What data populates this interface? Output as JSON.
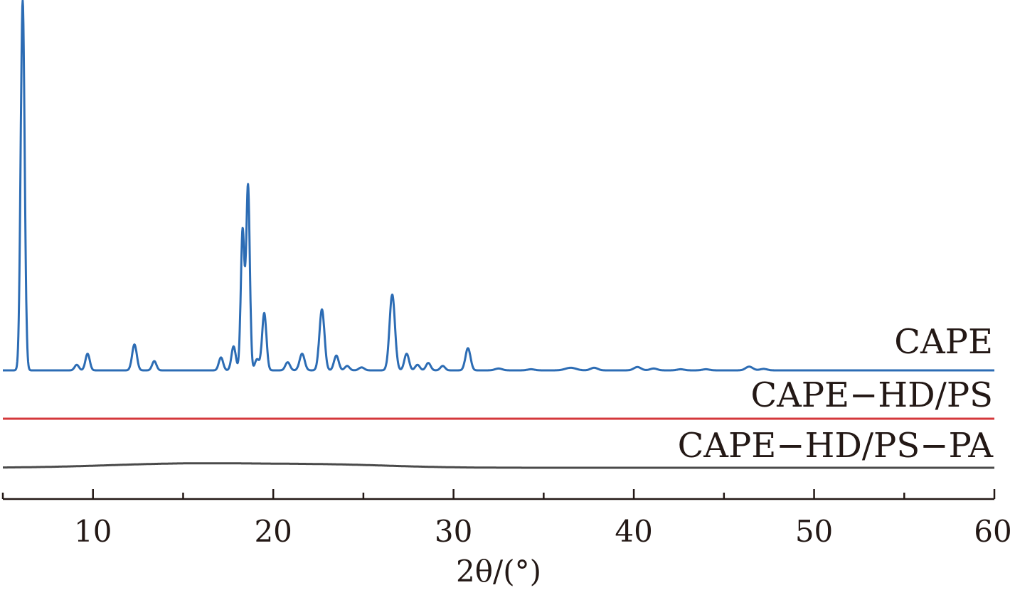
{
  "chart_data": {
    "type": "line",
    "xlabel": "2θ/(°)",
    "x_range": [
      5,
      60
    ],
    "x_ticks": [
      10,
      20,
      30,
      40,
      50,
      60
    ],
    "tick_labels": [
      "10",
      "20",
      "30",
      "40",
      "50",
      "60"
    ],
    "y_axis": "none (intensity, traces vertically offset)",
    "grid": false,
    "legend": "series labels printed at right end above each trace",
    "series": [
      {
        "name": "CAPE",
        "color": "#2c6cb4",
        "baseline": 0,
        "peaks": [
          {
            "x": 6.1,
            "height": 100,
            "width": 0.11
          },
          {
            "x": 9.1,
            "height": 1.5,
            "width": 0.12
          },
          {
            "x": 9.7,
            "height": 4.5,
            "width": 0.12
          },
          {
            "x": 12.3,
            "height": 7.0,
            "width": 0.13
          },
          {
            "x": 13.4,
            "height": 2.5,
            "width": 0.12
          },
          {
            "x": 17.1,
            "height": 3.5,
            "width": 0.12
          },
          {
            "x": 17.8,
            "height": 6.5,
            "width": 0.12
          },
          {
            "x": 18.3,
            "height": 38,
            "width": 0.1
          },
          {
            "x": 18.6,
            "height": 50,
            "width": 0.1
          },
          {
            "x": 19.1,
            "height": 3.0,
            "width": 0.12
          },
          {
            "x": 19.5,
            "height": 15.5,
            "width": 0.12
          },
          {
            "x": 20.8,
            "height": 2.2,
            "width": 0.13
          },
          {
            "x": 21.6,
            "height": 4.5,
            "width": 0.14
          },
          {
            "x": 22.7,
            "height": 16.5,
            "width": 0.14
          },
          {
            "x": 23.5,
            "height": 4.0,
            "width": 0.13
          },
          {
            "x": 24.1,
            "height": 1.2,
            "width": 0.13
          },
          {
            "x": 24.9,
            "height": 0.8,
            "width": 0.15
          },
          {
            "x": 26.6,
            "height": 20.5,
            "width": 0.15
          },
          {
            "x": 27.4,
            "height": 4.5,
            "width": 0.13
          },
          {
            "x": 28.0,
            "height": 1.5,
            "width": 0.13
          },
          {
            "x": 28.6,
            "height": 2.0,
            "width": 0.13
          },
          {
            "x": 29.4,
            "height": 1.2,
            "width": 0.13
          },
          {
            "x": 30.8,
            "height": 6.0,
            "width": 0.14
          },
          {
            "x": 32.5,
            "height": 0.5,
            "width": 0.2
          },
          {
            "x": 34.3,
            "height": 0.3,
            "width": 0.2
          },
          {
            "x": 36.5,
            "height": 0.7,
            "width": 0.3
          },
          {
            "x": 37.8,
            "height": 0.7,
            "width": 0.2
          },
          {
            "x": 40.2,
            "height": 0.9,
            "width": 0.2
          },
          {
            "x": 41.1,
            "height": 0.5,
            "width": 0.2
          },
          {
            "x": 42.6,
            "height": 0.3,
            "width": 0.2
          },
          {
            "x": 44.0,
            "height": 0.3,
            "width": 0.2
          },
          {
            "x": 46.4,
            "height": 1.0,
            "width": 0.2
          },
          {
            "x": 47.2,
            "height": 0.4,
            "width": 0.2
          }
        ]
      },
      {
        "name": "CAPE−HD/PS",
        "color": "#d4383b",
        "baseline": 0,
        "peaks": []
      },
      {
        "name": "CAPE−HD/PS−PA",
        "color": "#4a4a4a",
        "baseline": 0,
        "halo": [
          {
            "x": 15.5,
            "height": 2.0,
            "width": 4.5
          },
          {
            "x": 23.5,
            "height": 1.2,
            "width": 3.5
          }
        ]
      }
    ]
  }
}
